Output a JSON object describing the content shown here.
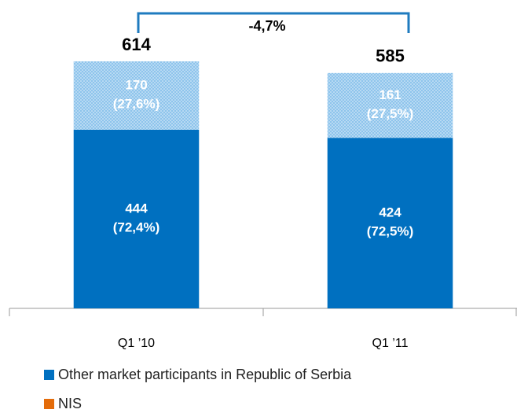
{
  "chart_data": {
    "type": "stacked_bar",
    "categories": [
      "Q1 ’10",
      "Q1 ’11"
    ],
    "series": [
      {
        "name": "Other market participants in Republic of Serbia",
        "color": "#0070c0",
        "values": [
          444,
          424
        ],
        "value_labels": [
          "444\n(72,4%)",
          "424\n(72,5%)"
        ]
      },
      {
        "name": "NIS",
        "color": "#e46c0a",
        "bar_color": "#8ec4ec",
        "values": [
          170,
          161
        ],
        "value_labels": [
          "170\n(27,6%)",
          "161\n(27,5%)"
        ]
      }
    ],
    "totals": [
      614,
      585
    ],
    "annotation": "-4,7%",
    "ylim": [
      0,
      700
    ]
  }
}
